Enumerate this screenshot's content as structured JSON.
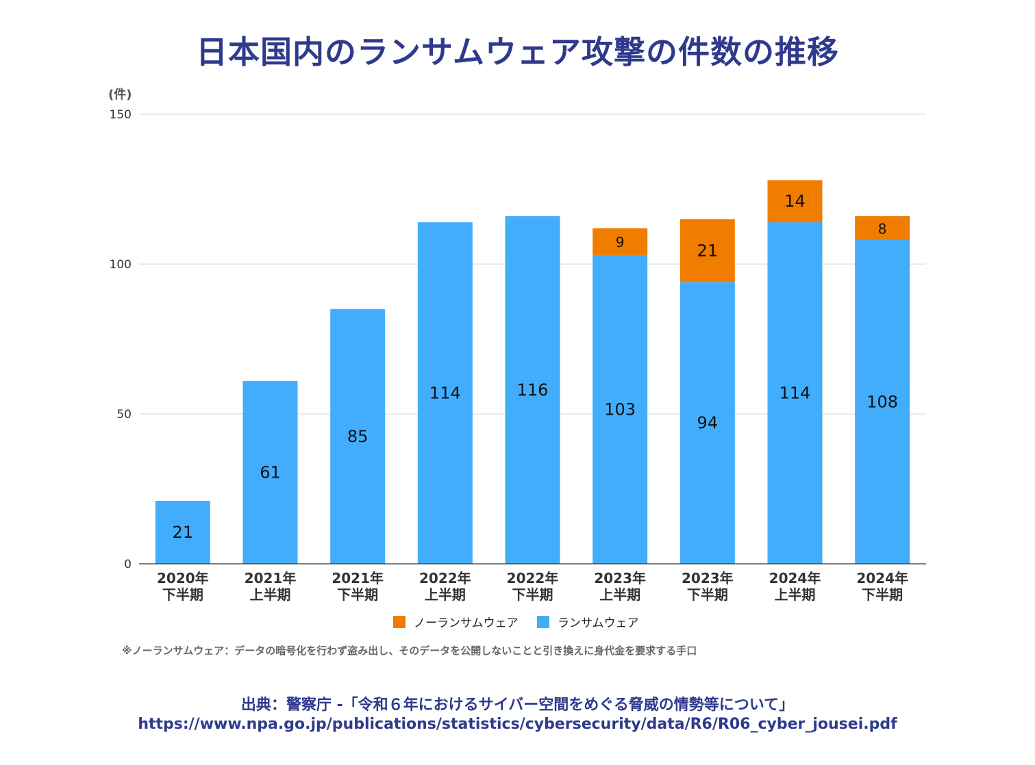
{
  "title": "日本国内のランサムウェア攻撃の件数の推移",
  "chart_data": {
    "type": "bar",
    "stacked": true,
    "unit_label": "(件)",
    "ylim": [
      0,
      150
    ],
    "yticks": [
      0,
      50,
      100,
      150
    ],
    "grid": true,
    "legend_position": "bottom",
    "categories": [
      [
        "2020年",
        "下半期"
      ],
      [
        "2021年",
        "上半期"
      ],
      [
        "2021年",
        "下半期"
      ],
      [
        "2022年",
        "上半期"
      ],
      [
        "2022年",
        "下半期"
      ],
      [
        "2023年",
        "上半期"
      ],
      [
        "2023年",
        "下半期"
      ],
      [
        "2024年",
        "上半期"
      ],
      [
        "2024年",
        "下半期"
      ]
    ],
    "series": [
      {
        "name": "ランサムウェア",
        "color": "#42adfc",
        "values": [
          21,
          61,
          85,
          114,
          116,
          103,
          94,
          114,
          108
        ]
      },
      {
        "name": "ノーランサムウェア",
        "color": "#f07c00",
        "values": [
          0,
          0,
          0,
          0,
          0,
          9,
          21,
          14,
          8
        ]
      }
    ],
    "legend_order": [
      1,
      0
    ]
  },
  "note": "※ノーランサムウェア：データの暗号化を行わず盗み出し、そのデータを公開しないことと引き換えに身代金を要求する手口",
  "source_line1": "出典：警察庁 -「令和６年におけるサイバー空間をめぐる脅威の情勢等について」",
  "source_line2": "https://www.npa.go.jp/publications/statistics/cybersecurity/data/R6/R06_cyber_jousei.pdf"
}
